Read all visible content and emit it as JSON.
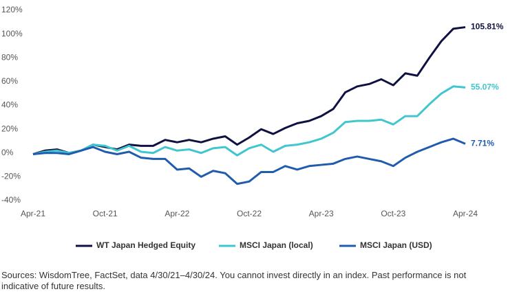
{
  "chart_data": {
    "type": "line",
    "categories": [
      "Apr-21",
      null,
      null,
      null,
      null,
      null,
      "Oct-21",
      null,
      null,
      null,
      null,
      null,
      "Apr-22",
      null,
      null,
      null,
      null,
      null,
      "Oct-22",
      null,
      null,
      null,
      null,
      null,
      "Apr-23",
      null,
      null,
      null,
      null,
      null,
      "Oct-23",
      null,
      null,
      null,
      null,
      null,
      "Apr-24"
    ],
    "series": [
      {
        "name": "WT Japan Hedged Equity",
        "color": "#0f1240",
        "values": [
          -1,
          2,
          3,
          0,
          2,
          7,
          5,
          3,
          7,
          6,
          6,
          11,
          9,
          11,
          9,
          12,
          14,
          7,
          13,
          20,
          16,
          21,
          25,
          27,
          31,
          37,
          51,
          56,
          58,
          62,
          57,
          67,
          65,
          80,
          94,
          104.5,
          105.81
        ],
        "value_labels": [
          null,
          null,
          null,
          null,
          null,
          null,
          null,
          null,
          null,
          null,
          null,
          null,
          null,
          null,
          null,
          null,
          null,
          null,
          null,
          null,
          null,
          null,
          null,
          null,
          null,
          null,
          null,
          null,
          null,
          null,
          null,
          null,
          null,
          null,
          null,
          null,
          "105.81%"
        ]
      },
      {
        "name": "MSCI Japan (local)",
        "color": "#3fc6cf",
        "values": [
          -1,
          1,
          2,
          0,
          2,
          7,
          6,
          2,
          6,
          1,
          0,
          5,
          2,
          3,
          0,
          4,
          5,
          -2,
          4,
          7,
          1,
          6,
          7,
          9,
          12,
          17,
          26,
          27,
          27,
          28,
          24,
          31,
          31,
          41,
          50,
          56,
          55.07
        ],
        "value_labels": [
          null,
          null,
          null,
          null,
          null,
          null,
          null,
          null,
          null,
          null,
          null,
          null,
          null,
          null,
          null,
          null,
          null,
          null,
          null,
          null,
          null,
          null,
          null,
          null,
          null,
          null,
          null,
          null,
          null,
          null,
          null,
          null,
          null,
          null,
          null,
          null,
          "55.07%"
        ]
      },
      {
        "name": "MSCI Japan (USD)",
        "color": "#1f5cae",
        "values": [
          -1,
          0,
          0,
          -1,
          2,
          5,
          1,
          -1,
          1,
          -4,
          -5,
          -5,
          -14,
          -13,
          -20,
          -15,
          -17,
          -26,
          -24,
          -16,
          -16,
          -11,
          -14,
          -11,
          -10,
          -9,
          -5,
          -3,
          -5,
          -7,
          -11,
          -4,
          1,
          5,
          9,
          12,
          7.71
        ],
        "value_labels": [
          null,
          null,
          null,
          null,
          null,
          null,
          null,
          null,
          null,
          null,
          null,
          null,
          null,
          null,
          null,
          null,
          null,
          null,
          null,
          null,
          null,
          null,
          null,
          null,
          null,
          null,
          null,
          null,
          null,
          null,
          null,
          null,
          null,
          null,
          null,
          null,
          "7.71%"
        ]
      }
    ],
    "ylim": [
      -40,
      120
    ],
    "yticks": [
      {
        "value": -40,
        "label": "-40%"
      },
      {
        "value": -20,
        "label": "-20%"
      },
      {
        "value": 0,
        "label": "0%"
      },
      {
        "value": 20,
        "label": "20%"
      },
      {
        "value": 40,
        "label": "40%"
      },
      {
        "value": 60,
        "label": "60%"
      },
      {
        "value": 80,
        "label": "80%"
      },
      {
        "value": 100,
        "label": "100%"
      },
      {
        "value": 120,
        "label": "120%"
      }
    ],
    "grid": false,
    "legend": "bottom",
    "source": "Sources: WisdomTree, FactSet, data 4/30/21–4/30/24. You cannot invest directly in an index. Past performance is not indicative of future results."
  }
}
